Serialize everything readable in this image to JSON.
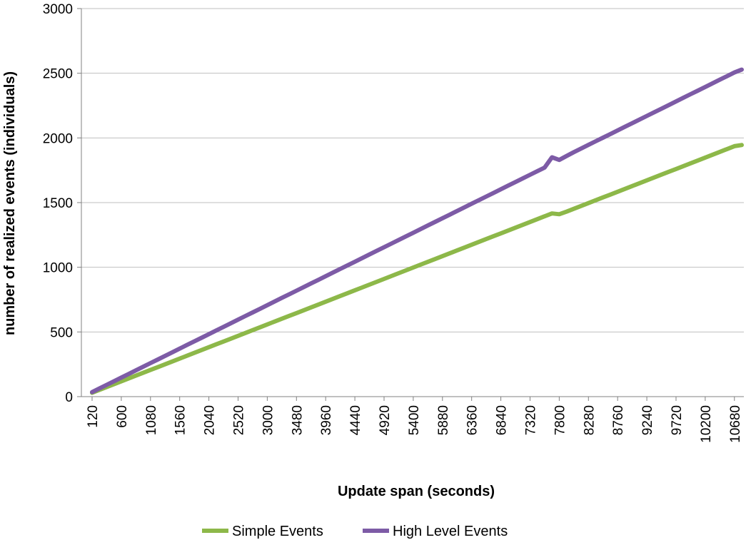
{
  "chart_data": {
    "type": "line",
    "xlabel": "Update span (seconds)",
    "ylabel": "number of realized events (individuals)",
    "ylim": [
      0,
      3000
    ],
    "yticks": [
      0,
      500,
      1000,
      1500,
      2000,
      2500,
      3000
    ],
    "xlim": [
      120,
      10800
    ],
    "x_step": 120,
    "xticks": [
      120,
      600,
      1080,
      1560,
      2040,
      2520,
      3000,
      3480,
      3960,
      4440,
      4920,
      5400,
      5880,
      6360,
      6840,
      7320,
      7800,
      8280,
      8760,
      9240,
      9720,
      10200,
      10680
    ],
    "grid": "horizontal",
    "legend_position": "bottom",
    "series": [
      {
        "name": "Simple Events",
        "color": "#8db849",
        "values": [
          30,
          52,
          74,
          96,
          118,
          140,
          162,
          184,
          206,
          228,
          250,
          272,
          294,
          316,
          338,
          360,
          382,
          404,
          426,
          448,
          470,
          492,
          514,
          536,
          558,
          580,
          602,
          624,
          646,
          668,
          690,
          712,
          734,
          756,
          778,
          800,
          822,
          844,
          866,
          888,
          910,
          932,
          954,
          976,
          998,
          1020,
          1042,
          1064,
          1086,
          1108,
          1130,
          1152,
          1174,
          1196,
          1218,
          1240,
          1262,
          1284,
          1306,
          1328,
          1350,
          1372,
          1394,
          1416,
          1410,
          1430,
          1452,
          1474,
          1496,
          1518,
          1540,
          1562,
          1584,
          1606,
          1628,
          1650,
          1672,
          1694,
          1716,
          1738,
          1760,
          1782,
          1804,
          1826,
          1848,
          1870,
          1892,
          1914,
          1936,
          1945
        ]
      },
      {
        "name": "High Level Events",
        "color": "#7d5ba6",
        "values": [
          35,
          63,
          91,
          119,
          147,
          175,
          203,
          231,
          259,
          287,
          315,
          343,
          371,
          399,
          427,
          455,
          483,
          511,
          539,
          567,
          595,
          623,
          651,
          679,
          707,
          735,
          763,
          791,
          819,
          847,
          875,
          903,
          931,
          959,
          987,
          1015,
          1043,
          1071,
          1099,
          1127,
          1155,
          1183,
          1211,
          1239,
          1267,
          1295,
          1323,
          1351,
          1379,
          1407,
          1435,
          1463,
          1491,
          1519,
          1547,
          1575,
          1603,
          1631,
          1659,
          1687,
          1715,
          1743,
          1771,
          1850,
          1830,
          1860,
          1890,
          1918,
          1946,
          1974,
          2002,
          2030,
          2058,
          2086,
          2114,
          2142,
          2170,
          2198,
          2226,
          2254,
          2282,
          2310,
          2338,
          2366,
          2394,
          2422,
          2450,
          2478,
          2506,
          2528
        ]
      }
    ]
  }
}
